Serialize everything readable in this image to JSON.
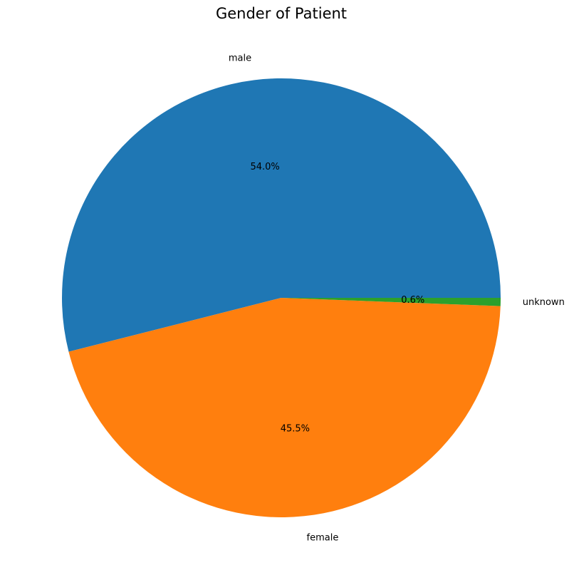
{
  "chart_data": {
    "type": "pie",
    "title": "Gender of Patient",
    "slices": [
      {
        "label": "male",
        "value": 54.0,
        "pct_label": "54.0%",
        "color": "#1f77b4"
      },
      {
        "label": "female",
        "value": 45.5,
        "pct_label": "45.5%",
        "color": "#ff7f0e"
      },
      {
        "label": "unknown",
        "value": 0.6,
        "pct_label": "0.6%",
        "color": "#2ca02c"
      }
    ],
    "start_angle_deg": 0,
    "direction": "counterclockwise",
    "legend": "none"
  }
}
